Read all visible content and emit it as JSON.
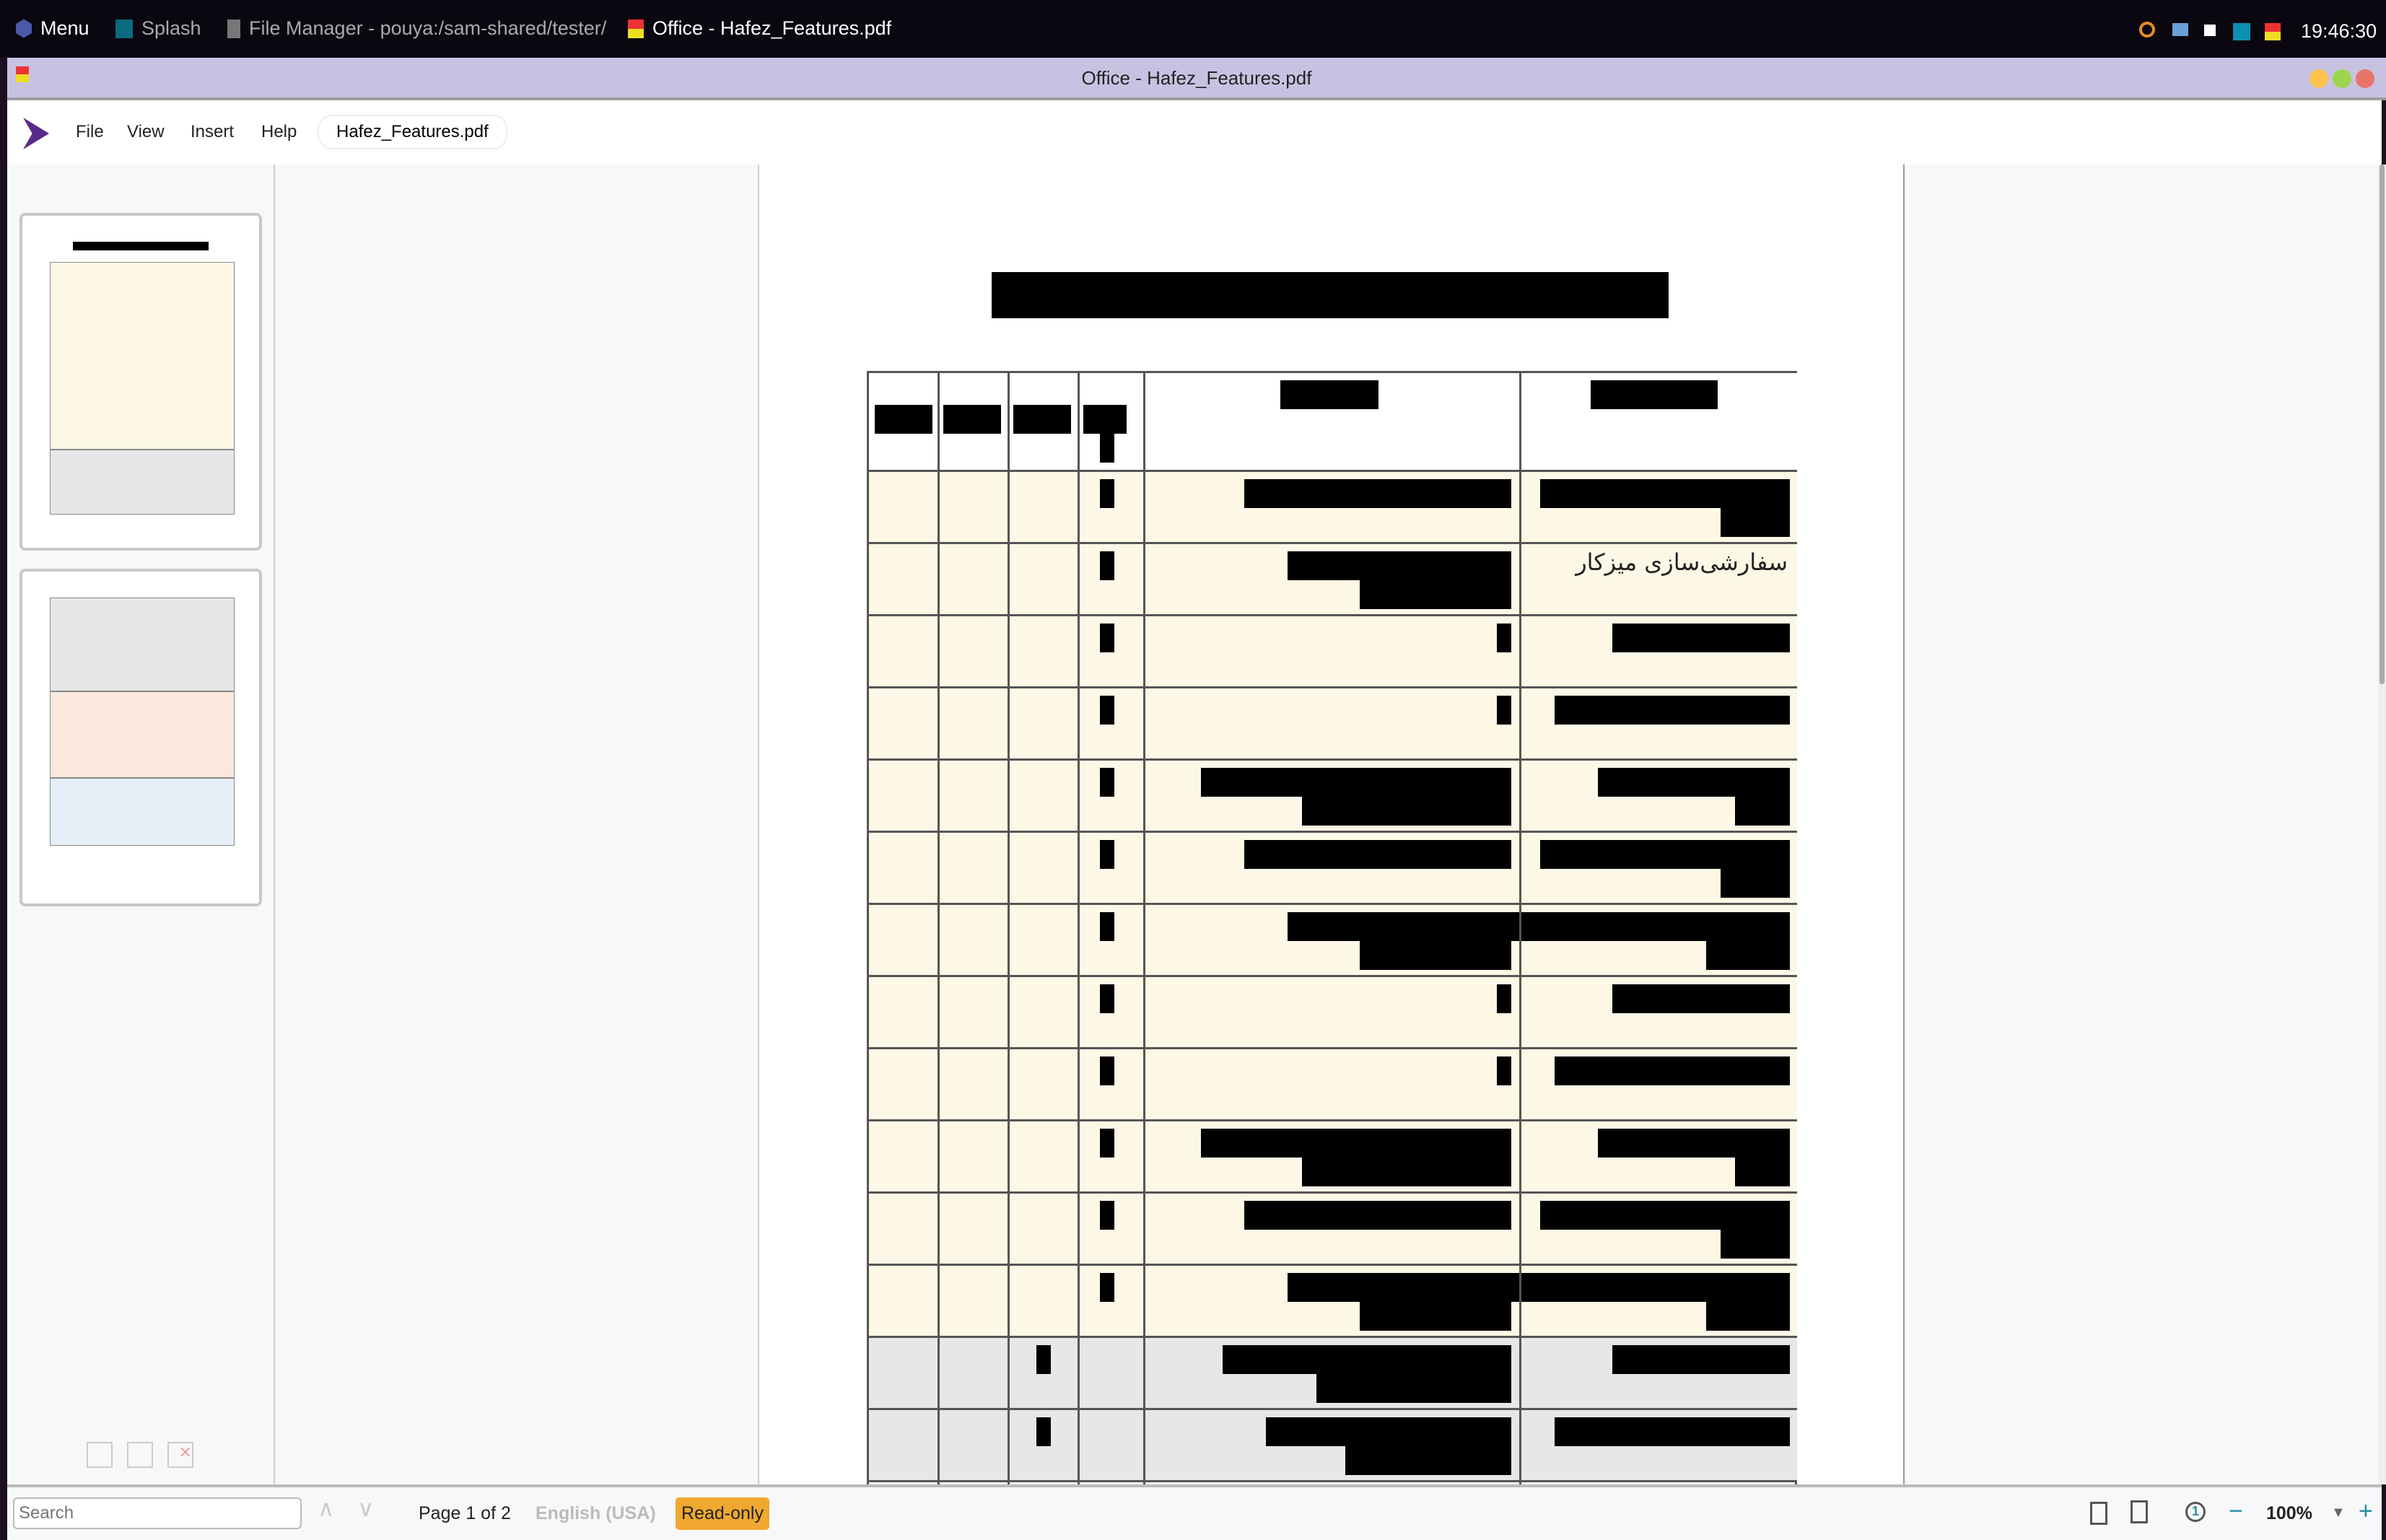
{
  "taskbar": {
    "menu": "Menu",
    "items": [
      {
        "label": "Splash"
      },
      {
        "label": "File Manager - pouya:/sam-shared/tester/"
      },
      {
        "label": "Office - Hafez_Features.pdf"
      }
    ],
    "clock": "19:46:30",
    "tray_icons": [
      "search-icon",
      "flag-icon",
      "display-icon",
      "splash-icon",
      "office-icon"
    ]
  },
  "window": {
    "title": "Office - Hafez_Features.pdf"
  },
  "menubar": {
    "items": [
      "File",
      "View",
      "Insert",
      "Help"
    ],
    "document_tab": "Hafez_Features.pdf"
  },
  "document": {
    "visible_cell_text": "سفارشی‌سازی میزکار",
    "colors": {
      "row_cream": "#fdf8e6",
      "row_gray": "#e6e8e8"
    }
  },
  "statusbar": {
    "search_placeholder": "Search",
    "page": "Page 1 of 2",
    "language": "English (USA)",
    "mode": "Read-only",
    "zoom": "100%",
    "mode_color": "#f0a830"
  }
}
